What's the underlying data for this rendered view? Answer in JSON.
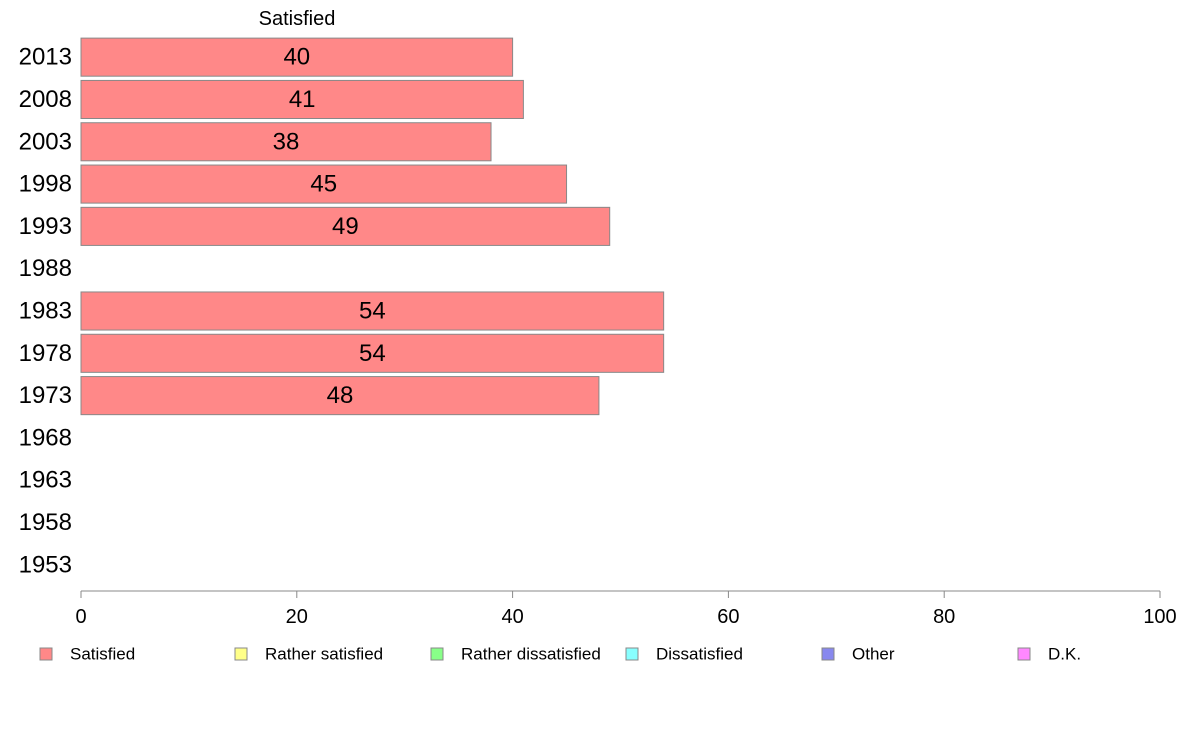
{
  "chart_data": {
    "type": "bar",
    "orientation": "horizontal",
    "series_header": "Satisfied",
    "categories": [
      "2013",
      "2008",
      "2003",
      "1998",
      "1993",
      "1988",
      "1983",
      "1978",
      "1973",
      "1968",
      "1963",
      "1958",
      "1953"
    ],
    "series": [
      {
        "name": "Satisfied",
        "values": [
          40,
          41,
          38,
          45,
          49,
          null,
          54,
          54,
          48,
          null,
          null,
          null,
          null
        ]
      }
    ],
    "xlim": [
      0,
      100
    ],
    "xticks": [
      0,
      20,
      40,
      60,
      80,
      100
    ],
    "grid": false,
    "legend_position": "bottom",
    "legend": [
      {
        "label": "Satisfied",
        "color": "#ff8888"
      },
      {
        "label": "Rather satisfied",
        "color": "#ffff88"
      },
      {
        "label": "Rather dissatisfied",
        "color": "#88ff88"
      },
      {
        "label": "Dissatisfied",
        "color": "#88ffff"
      },
      {
        "label": "Other",
        "color": "#8888ee"
      },
      {
        "label": "D.K.",
        "color": "#ff88ff"
      }
    ],
    "bar_color": "#ff8888",
    "bar_stroke": "#888888",
    "axis_color": "#888888"
  }
}
